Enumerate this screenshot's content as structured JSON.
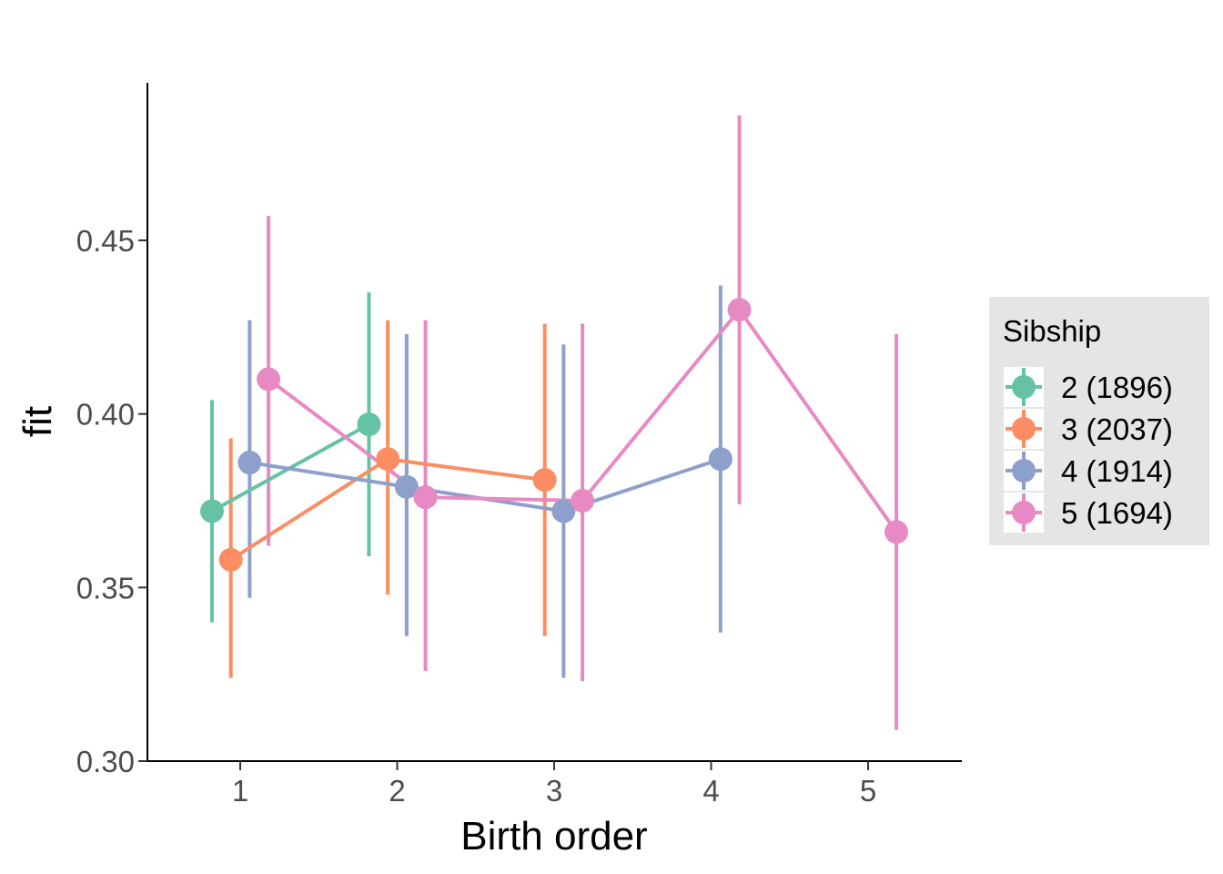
{
  "chart_data": {
    "type": "line",
    "title": "",
    "xlabel": "Birth order",
    "ylabel": "fit",
    "x_ticks": [
      1,
      2,
      3,
      4,
      5
    ],
    "y_ticks": [
      "0.30",
      "0.35",
      "0.40",
      "0.45"
    ],
    "xlim": [
      0.4,
      5.6
    ],
    "ylim": [
      0.3,
      0.491
    ],
    "error_bars": true,
    "dodge": 0.12,
    "legend": {
      "title": "Sibship",
      "position": "right"
    },
    "series": [
      {
        "name": "2 (1896)",
        "color": "#66c2a5",
        "offset_index": -1.5,
        "x": [
          1,
          2
        ],
        "y": [
          0.372,
          0.397
        ],
        "lower": [
          0.34,
          0.359
        ],
        "upper": [
          0.404,
          0.435
        ]
      },
      {
        "name": "3 (2037)",
        "color": "#fc8d62",
        "offset_index": -0.5,
        "x": [
          1,
          2,
          3
        ],
        "y": [
          0.358,
          0.387,
          0.381
        ],
        "lower": [
          0.324,
          0.348,
          0.336
        ],
        "upper": [
          0.393,
          0.427,
          0.426
        ]
      },
      {
        "name": "4 (1914)",
        "color": "#8da0cb",
        "offset_index": 0.5,
        "x": [
          1,
          2,
          3,
          4
        ],
        "y": [
          0.386,
          0.379,
          0.372,
          0.387
        ],
        "lower": [
          0.347,
          0.336,
          0.324,
          0.337
        ],
        "upper": [
          0.427,
          0.423,
          0.42,
          0.437
        ]
      },
      {
        "name": "5 (1694)",
        "color": "#e78ac3",
        "offset_index": 1.5,
        "x": [
          1,
          2,
          3,
          4,
          5
        ],
        "y": [
          0.41,
          0.376,
          0.375,
          0.43,
          0.366
        ],
        "lower": [
          0.362,
          0.326,
          0.323,
          0.374,
          0.309
        ],
        "upper": [
          0.457,
          0.427,
          0.426,
          0.486,
          0.423
        ]
      }
    ]
  }
}
